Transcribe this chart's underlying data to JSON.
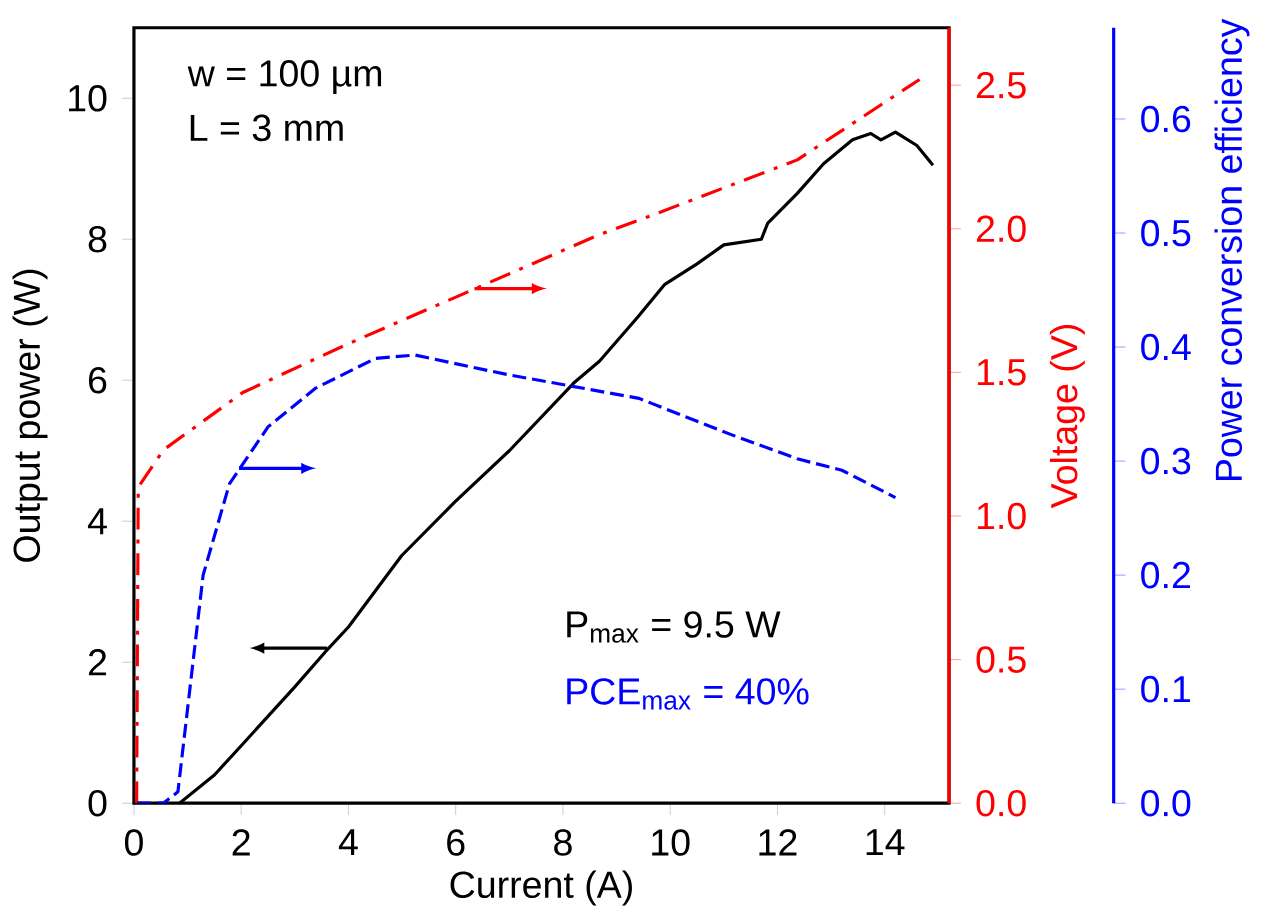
{
  "chart_data": {
    "type": "line",
    "xlabel": "Current (A)",
    "ylabel": "Output power (W)",
    "y2label": "Voltage (V)",
    "y3label": "Power conversion efficiency",
    "xlim": [
      0,
      15.2
    ],
    "xticks": [
      0,
      2,
      4,
      6,
      8,
      10,
      12,
      14
    ],
    "ylim": [
      0,
      11
    ],
    "yticks": [
      0,
      2,
      4,
      6,
      8,
      10
    ],
    "y2lim": [
      0,
      2.7
    ],
    "y2ticks": [
      {
        "value": 0,
        "label": "0.0"
      },
      0.5,
      {
        "value": 1,
        "label": "1.0"
      },
      1.5,
      {
        "value": 2,
        "label": "2.0"
      },
      2.5
    ],
    "y3lim": [
      0,
      0.68
    ],
    "y3ticks": [
      {
        "value": 0,
        "label": "0.0"
      },
      0.1,
      0.2,
      0.3,
      0.4,
      0.5,
      0.6
    ],
    "marker": "none",
    "annotations": [
      "w = 100 µm",
      "L = 3 mm",
      "P$_{max}$ = 9.5 W",
      "PCE$_{max}$ = 40%"
    ],
    "series": [
      {
        "color": "#000000",
        "line_style": "solid",
        "x": [
          0.85,
          1.5,
          2.03,
          3.0,
          3.62,
          4.0,
          4.99,
          5.98,
          7.0,
          8.2,
          8.68,
          9.4,
          9.9,
          10.5,
          11.0,
          11.7,
          11.82,
          12.37,
          12.86,
          13.4,
          13.74,
          13.93,
          14.2,
          14.6,
          14.9
        ],
        "values": [
          0,
          0.4,
          0.84,
          1.65,
          2.19,
          2.5,
          3.51,
          4.27,
          5.0,
          5.96,
          6.27,
          6.9,
          7.36,
          7.65,
          7.92,
          8.0,
          8.23,
          8.65,
          9.07,
          9.41,
          9.5,
          9.41,
          9.52,
          9.33,
          9.05
        ]
      },
      {
        "color": "#ff0000",
        "line_style": "dashdot",
        "axis": "y2",
        "x": [
          0.05,
          0.08,
          0.55,
          2.03,
          4.0,
          6.1,
          8.68,
          9.42,
          12.37,
          14.65
        ],
        "values": [
          0.0,
          1.1,
          1.23,
          1.43,
          1.6,
          1.77,
          1.98,
          2.03,
          2.24,
          2.52
        ]
      },
      {
        "color": "#0000ff",
        "line_style": "dashed",
        "axis": "y3",
        "x": [
          0.06,
          0.55,
          0.82,
          1.29,
          1.78,
          2.5,
          3.39,
          4.5,
          5.24,
          6.95,
          9.42,
          9.9,
          11.15,
          12.37,
          13.2,
          14.2
        ],
        "values": [
          0,
          0,
          0.01,
          0.2,
          0.28,
          0.33,
          0.364,
          0.39,
          0.393,
          0.376,
          0.355,
          0.346,
          0.323,
          0.302,
          0.292,
          0.268
        ]
      }
    ]
  }
}
